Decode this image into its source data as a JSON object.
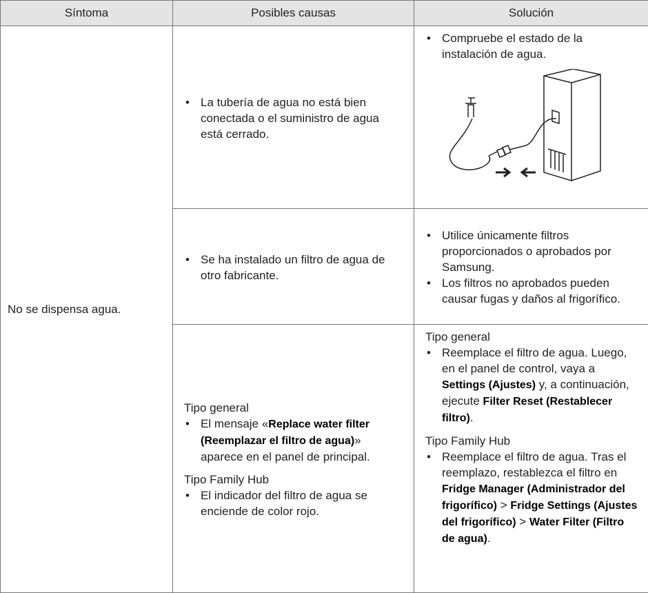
{
  "table": {
    "header": [
      "Síntoma",
      "Posibles causas",
      "Solución"
    ],
    "symptom": "No se dispensa agua.",
    "rows": [
      {
        "cause": [
          {
            "bullets": [
              [
                "La tubería de agua no está bien conectada o el suministro de agua está cerrado."
              ]
            ]
          }
        ],
        "solution": [
          {
            "bullets": [
              [
                "Compruebe el estado de la instalación de agua."
              ]
            ]
          }
        ]
      },
      {
        "cause": [
          {
            "bullets": [
              [
                "Se ha instalado un filtro de agua de otro fabricante."
              ]
            ]
          }
        ],
        "solution": [
          {
            "bullets": [
              [
                "Utilice únicamente filtros proporcionados o aprobados por Samsung."
              ],
              [
                "Los filtros no aprobados pueden causar fugas y daños al frigorífico."
              ]
            ]
          }
        ]
      },
      {
        "cause": [
          {
            "heading": "Tipo general",
            "bullets": [
              [
                "El mensaje «",
                "Replace water filter (Reemplazar el filtro de agua)",
                "» aparece en el panel de principal."
              ]
            ]
          },
          {
            "heading": "Tipo Family Hub",
            "bullets": [
              [
                "El indicador del filtro de agua se enciende de color rojo."
              ]
            ]
          }
        ],
        "solution": [
          {
            "heading": "Tipo general",
            "bullets": [
              [
                "Reemplace el filtro de agua. Luego, en el panel de control, vaya a ",
                "Settings (Ajustes)",
                " y, a continuación, ejecute ",
                "Filter Reset (Restablecer filtro)",
                "."
              ]
            ]
          },
          {
            "heading": "Tipo Family Hub",
            "bullets": [
              [
                "Reemplace el filtro de agua. Tras el reemplazo, restablezca el filtro en ",
                "Fridge Manager (Administrador del frigorífico)",
                " > ",
                "Fridge Settings (Ajustes del frigorífico)",
                " > ",
                "Water Filter (Filtro de agua)",
                "."
              ]
            ]
          }
        ]
      }
    ]
  }
}
